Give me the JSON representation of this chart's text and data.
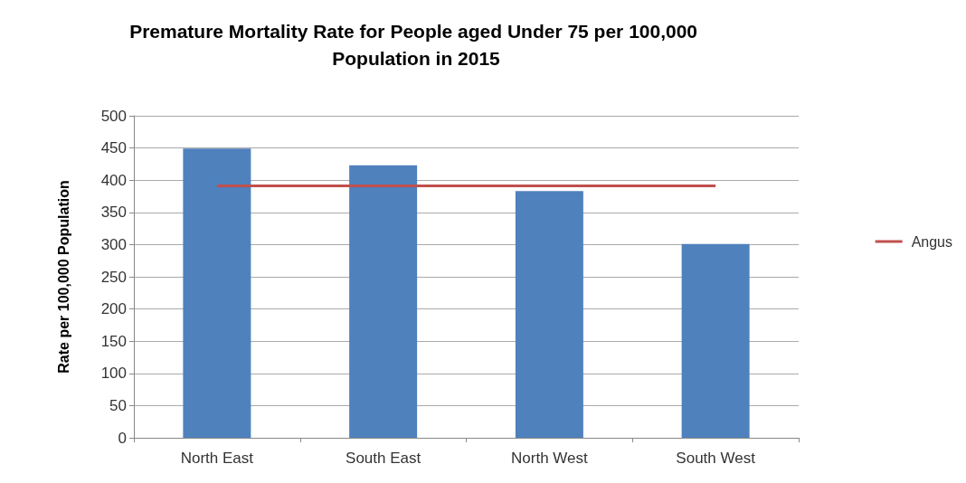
{
  "chart_data": {
    "type": "bar",
    "title": "Premature Mortality Rate for People aged Under 75 per 100,000 Population in 2015",
    "ylabel": "Rate per 100,000 Population",
    "categories": [
      "North East",
      "South East",
      "North West",
      "South West"
    ],
    "series": [
      {
        "color": "#4f81bd",
        "values": [
          449,
          423,
          383,
          301
        ]
      },
      {
        "type": "line",
        "name": "Angus",
        "color": "#c0504d",
        "values": [
          391,
          391,
          391,
          391
        ]
      }
    ],
    "ylim": [
      0,
      500
    ],
    "yticks": [
      0,
      50,
      100,
      150,
      200,
      250,
      300,
      350,
      400,
      450,
      500
    ],
    "grid": "y",
    "legend": "right",
    "marker": "none"
  }
}
